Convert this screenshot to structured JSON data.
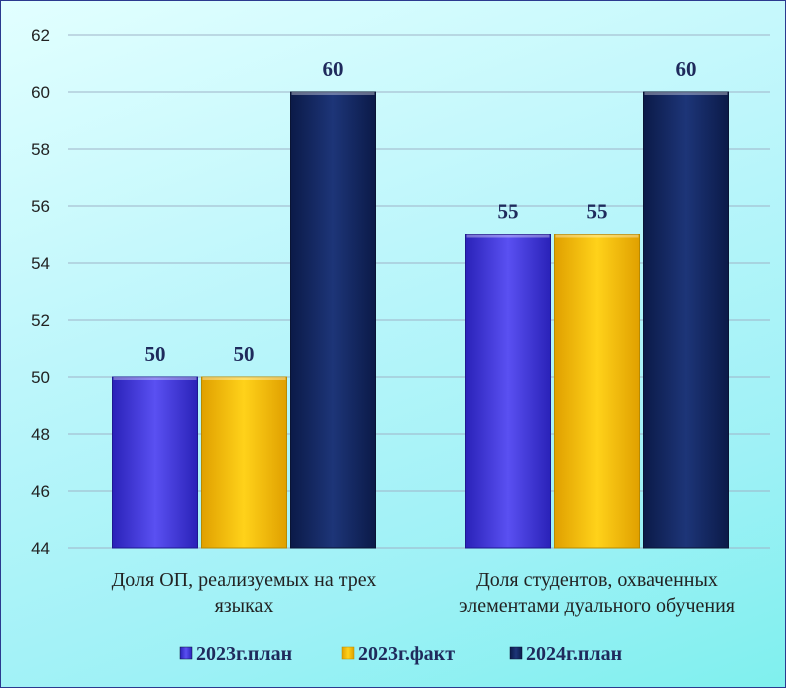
{
  "chart_data": {
    "type": "bar",
    "categories": [
      [
        "Доля ОП, реализуемых на трех",
        "языках"
      ],
      [
        "Доля студентов, охваченных",
        "элементами дуального обучения"
      ]
    ],
    "series": [
      {
        "name": "2023г.план",
        "values": [
          50,
          55
        ],
        "color": "#4338e0"
      },
      {
        "name": "2023г.факт",
        "values": [
          50,
          55
        ],
        "color": "#fcc200"
      },
      {
        "name": "2024г.план",
        "values": [
          60,
          60
        ],
        "color": "#152a66"
      }
    ],
    "ylim": [
      44,
      62
    ],
    "yticks": [
      44,
      46,
      48,
      50,
      52,
      54,
      56,
      58,
      60,
      62
    ],
    "grid": true,
    "legend_position": "bottom",
    "title": "",
    "xlabel": "",
    "ylabel": ""
  }
}
